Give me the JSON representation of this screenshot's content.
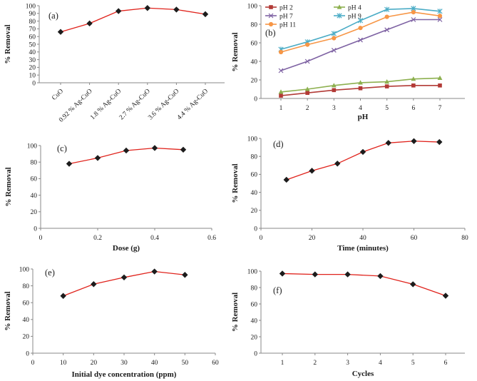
{
  "chart_data": [
    {
      "panel_label": "(a)",
      "type": "line",
      "categories": [
        "CuO",
        "0.92 % Ag-CuO",
        "1.8 % Ag-CuO",
        "2.7 % Ag-CuO",
        "3.6 % Ag-CuO",
        "4.4 % Ag-CuO"
      ],
      "values": [
        66,
        77,
        93,
        97,
        95,
        89
      ],
      "xlabel": "",
      "ylabel": "% Removal",
      "ylim": [
        0,
        100
      ],
      "yticks": [
        0,
        10,
        20,
        30,
        40,
        50,
        60,
        70,
        80,
        90,
        100
      ],
      "grid": false,
      "colors": {
        "line": "#e0231c",
        "marker": "#1c1c1c"
      }
    },
    {
      "panel_label": "(b)",
      "type": "line",
      "x": [
        1,
        2,
        3,
        4,
        5,
        6,
        7
      ],
      "series": [
        {
          "name": "pH 2",
          "values": [
            3,
            6,
            9,
            11,
            13,
            14,
            14
          ],
          "color": "#b23a36",
          "marker": "square"
        },
        {
          "name": "pH 4",
          "values": [
            7,
            10,
            14,
            17,
            18,
            21,
            22
          ],
          "color": "#8db04f",
          "marker": "triangle"
        },
        {
          "name": "pH 7",
          "values": [
            30,
            40,
            52,
            63,
            74,
            85,
            85
          ],
          "color": "#7e62a3",
          "marker": "x"
        },
        {
          "name": "pH 9",
          "values": [
            53,
            61,
            70,
            84,
            96,
            97,
            94
          ],
          "color": "#4bacc6",
          "marker": "star"
        },
        {
          "name": "pH 11",
          "values": [
            50,
            58,
            65,
            76,
            88,
            93,
            89
          ],
          "color": "#f79646",
          "marker": "circle"
        }
      ],
      "xlabel": "pH",
      "ylabel": "% Removal",
      "xlim": [
        1,
        7
      ],
      "ylim": [
        0,
        100
      ],
      "yticks": [
        0,
        20,
        40,
        60,
        80,
        100
      ],
      "legend": "top",
      "grid": false
    },
    {
      "panel_label": "(c)",
      "type": "line",
      "x": [
        0.1,
        0.2,
        0.3,
        0.4,
        0.5
      ],
      "values": [
        78,
        85,
        94,
        97,
        95
      ],
      "xlabel": "Dose (g)",
      "ylabel": "% Removal",
      "xlim": [
        0,
        0.6
      ],
      "ylim": [
        0,
        100
      ],
      "xticks": [
        "0",
        "0.2",
        "0.4",
        "0.6"
      ],
      "yticks": [
        0,
        20,
        40,
        60,
        80,
        100
      ],
      "grid": false,
      "colors": {
        "line": "#e0231c",
        "marker": "#1c1c1c"
      }
    },
    {
      "panel_label": "(d)",
      "type": "line",
      "x": [
        10,
        20,
        30,
        40,
        50,
        60,
        70
      ],
      "values": [
        54,
        64,
        72,
        85,
        95,
        97,
        96
      ],
      "xlabel": "Time (minutes)",
      "ylabel": "% Removal",
      "xlim": [
        0,
        80
      ],
      "ylim": [
        0,
        100
      ],
      "xticks": [
        0,
        20,
        40,
        60,
        80
      ],
      "yticks": [
        0,
        20,
        40,
        60,
        80,
        100
      ],
      "grid": false,
      "colors": {
        "line": "#e0231c",
        "marker": "#1c1c1c"
      }
    },
    {
      "panel_label": "(e)",
      "type": "line",
      "x": [
        10,
        20,
        30,
        40,
        50
      ],
      "values": [
        68,
        82,
        90,
        97,
        93
      ],
      "xlabel": "Initial dye concentration (ppm)",
      "ylabel": "% Removal",
      "xlim": [
        0,
        60
      ],
      "ylim": [
        0,
        100
      ],
      "xticks": [
        0,
        10,
        20,
        30,
        40,
        50,
        60
      ],
      "yticks": [
        0,
        20,
        40,
        60,
        80,
        100
      ],
      "grid": false,
      "colors": {
        "line": "#e0231c",
        "marker": "#1c1c1c"
      }
    },
    {
      "panel_label": "(f)",
      "type": "line",
      "categories": [
        "1",
        "2",
        "3",
        "4",
        "5",
        "6"
      ],
      "values": [
        97,
        96,
        96,
        94,
        84,
        70
      ],
      "xlabel": "Cycles",
      "ylabel": "% Removal",
      "ylim": [
        0,
        100
      ],
      "yticks": [
        0,
        20,
        40,
        60,
        80,
        100
      ],
      "grid": false,
      "colors": {
        "line": "#e0231c",
        "marker": "#1c1c1c"
      }
    }
  ]
}
